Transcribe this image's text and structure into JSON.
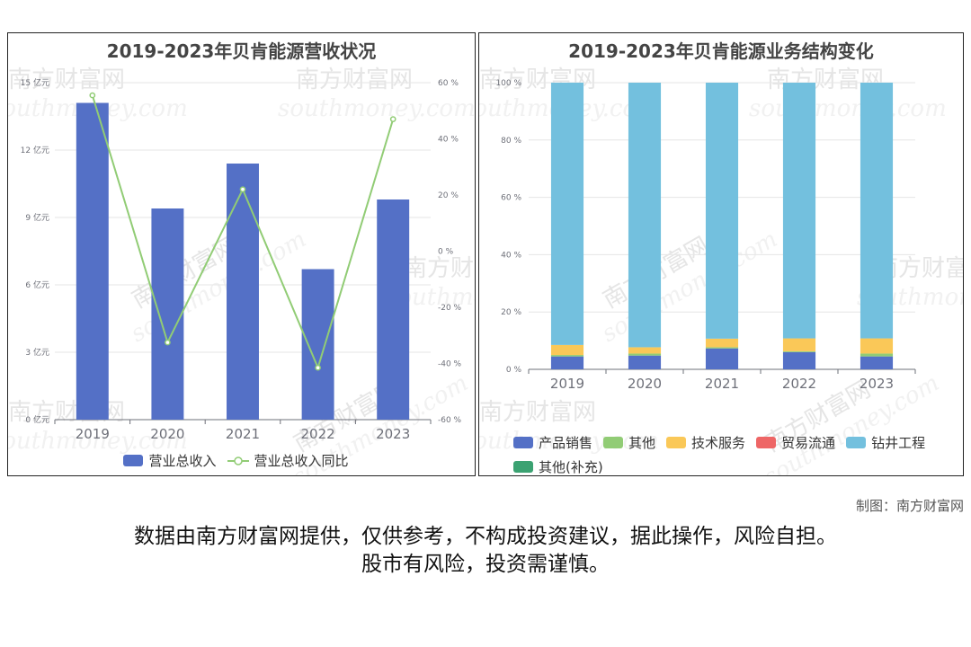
{
  "left_chart_title": "2019-2023年贝肯能源营收状况",
  "right_chart_title": "2019-2023年贝肯能源业务结构变化",
  "credit": "制图：南方财富网",
  "disclaimer_line1": "数据由南方财富网提供，仅供参考，不构成投资建议，据此操作，风险自担。",
  "disclaimer_line2": "股市有风险，投资需谨慎。",
  "watermark": {
    "cn": "南方财富网",
    "en": "southmoney.com"
  },
  "colors": {
    "bar_blue": "#5470c6",
    "line_green": "#91cc75",
    "yellow": "#fac858",
    "red": "#ee6666",
    "cyan": "#73c0de",
    "teal": "#3ba272",
    "grid": "#e6e6e6",
    "axis": "#6e7079"
  },
  "chart_data": [
    {
      "type": "bar",
      "title": "2019-2023年贝肯能源营收状况",
      "categories": [
        "2019",
        "2020",
        "2021",
        "2022",
        "2023"
      ],
      "series": [
        {
          "name": "营业总收入",
          "type": "bar",
          "axis": "left",
          "values": [
            14.1,
            9.4,
            11.4,
            6.7,
            9.8
          ]
        },
        {
          "name": "营业总收入同比",
          "type": "line",
          "axis": "right",
          "values": [
            55.5,
            -32.5,
            22,
            -41.5,
            47
          ]
        }
      ],
      "y_left": {
        "min": 0,
        "max": 15,
        "ticks": [
          0,
          3,
          6,
          9,
          12,
          15
        ],
        "unit": "亿元"
      },
      "y_right": {
        "min": -60,
        "max": 60,
        "ticks": [
          -60,
          -40,
          -20,
          0,
          20,
          40,
          60
        ],
        "unit": "%"
      },
      "grid": true,
      "legend_position": "bottom"
    },
    {
      "type": "bar",
      "stacked": true,
      "title": "2019-2023年贝肯能源业务结构变化",
      "categories": [
        "2019",
        "2020",
        "2021",
        "2022",
        "2023"
      ],
      "series": [
        {
          "name": "产品销售",
          "color": "#5470c6",
          "values": [
            4.5,
            4.8,
            7.3,
            6.0,
            4.5
          ]
        },
        {
          "name": "其他",
          "color": "#91cc75",
          "values": [
            0.5,
            0.7,
            0.4,
            0.3,
            1.0
          ]
        },
        {
          "name": "技术服务",
          "color": "#fac858",
          "values": [
            3.5,
            2.2,
            3.0,
            4.5,
            5.3
          ]
        },
        {
          "name": "贸易流通",
          "color": "#ee6666",
          "values": [
            0,
            0,
            0,
            0,
            0
          ]
        },
        {
          "name": "钻井工程",
          "color": "#73c0de",
          "values": [
            91.5,
            92.3,
            89.3,
            89.2,
            89.2
          ]
        },
        {
          "name": "其他(补充)",
          "color": "#3ba272",
          "values": [
            0,
            0,
            0,
            0,
            0
          ]
        }
      ],
      "y": {
        "min": 0,
        "max": 100,
        "ticks": [
          0,
          20,
          40,
          60,
          80,
          100
        ],
        "unit": "%"
      },
      "grid": true,
      "legend_position": "bottom"
    }
  ]
}
